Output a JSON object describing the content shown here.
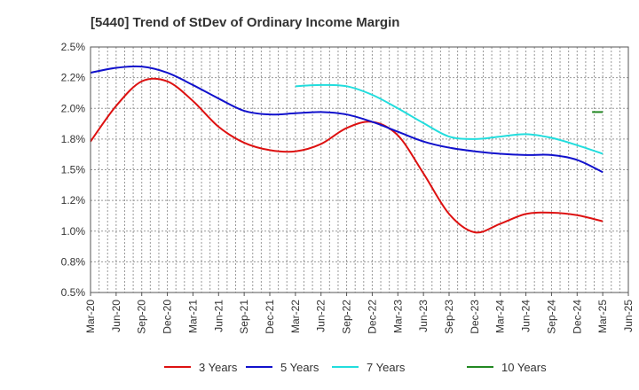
{
  "chart_data": {
    "type": "line",
    "title": "[5440]  Trend of StDev of Ordinary Income Margin",
    "xlabel": "",
    "ylabel": "",
    "x_ticks": [
      "Mar-20",
      "Jun-20",
      "Sep-20",
      "Dec-20",
      "Mar-21",
      "Jun-21",
      "Sep-21",
      "Dec-21",
      "Mar-22",
      "Jun-22",
      "Sep-22",
      "Dec-22",
      "Mar-23",
      "Jun-23",
      "Sep-23",
      "Dec-23",
      "Mar-24",
      "Jun-24",
      "Sep-24",
      "Dec-24",
      "Mar-25",
      "Jun-25"
    ],
    "y_ticks": [
      "0.5%",
      "0.8%",
      "1.0%",
      "1.2%",
      "1.5%",
      "1.8%",
      "2.0%",
      "2.2%",
      "2.5%"
    ],
    "ylim": [
      0.5,
      2.5
    ],
    "y_unit": "%",
    "grid": true,
    "legend_position": "bottom",
    "series": [
      {
        "name": "3 Years",
        "color": "#dd1111",
        "x": [
          "Mar-20",
          "Jun-20",
          "Sep-20",
          "Dec-20",
          "Mar-21",
          "Jun-21",
          "Sep-21",
          "Dec-21",
          "Mar-22",
          "Jun-22",
          "Sep-22",
          "Dec-22",
          "Mar-23",
          "Jun-23",
          "Sep-23",
          "Dec-23",
          "Mar-24",
          "Jun-24",
          "Sep-24",
          "Dec-24",
          "Mar-25"
        ],
        "values": [
          1.73,
          2.02,
          2.22,
          2.22,
          2.06,
          1.85,
          1.72,
          1.66,
          1.65,
          1.71,
          1.84,
          1.89,
          1.78,
          1.47,
          1.14,
          0.99,
          1.06,
          1.14,
          1.15,
          1.13,
          1.08
        ]
      },
      {
        "name": "5 Years",
        "color": "#1111cc",
        "x": [
          "Mar-20",
          "Jun-20",
          "Sep-20",
          "Dec-20",
          "Mar-21",
          "Jun-21",
          "Sep-21",
          "Dec-21",
          "Mar-22",
          "Jun-22",
          "Sep-22",
          "Dec-22",
          "Mar-23",
          "Jun-23",
          "Sep-23",
          "Dec-23",
          "Mar-24",
          "Jun-24",
          "Sep-24",
          "Dec-24",
          "Mar-25"
        ],
        "values": [
          2.29,
          2.33,
          2.34,
          2.29,
          2.19,
          2.08,
          1.98,
          1.95,
          1.96,
          1.97,
          1.95,
          1.89,
          1.81,
          1.73,
          1.68,
          1.65,
          1.63,
          1.62,
          1.62,
          1.58,
          1.48
        ]
      },
      {
        "name": "7 Years",
        "color": "#22dddd",
        "x": [
          "Mar-22",
          "Jun-22",
          "Sep-22",
          "Dec-22",
          "Mar-23",
          "Jun-23",
          "Sep-23",
          "Dec-23",
          "Mar-24",
          "Jun-24",
          "Sep-24",
          "Dec-24",
          "Mar-25"
        ],
        "values": [
          2.18,
          2.19,
          2.18,
          2.11,
          2.0,
          1.88,
          1.77,
          1.75,
          1.77,
          1.79,
          1.76,
          1.7,
          1.63
        ]
      },
      {
        "name": "10 Years",
        "color": "#228822",
        "x": [
          "Dec-24",
          "Mar-25"
        ],
        "values": [
          1.97,
          1.97
        ]
      }
    ]
  }
}
